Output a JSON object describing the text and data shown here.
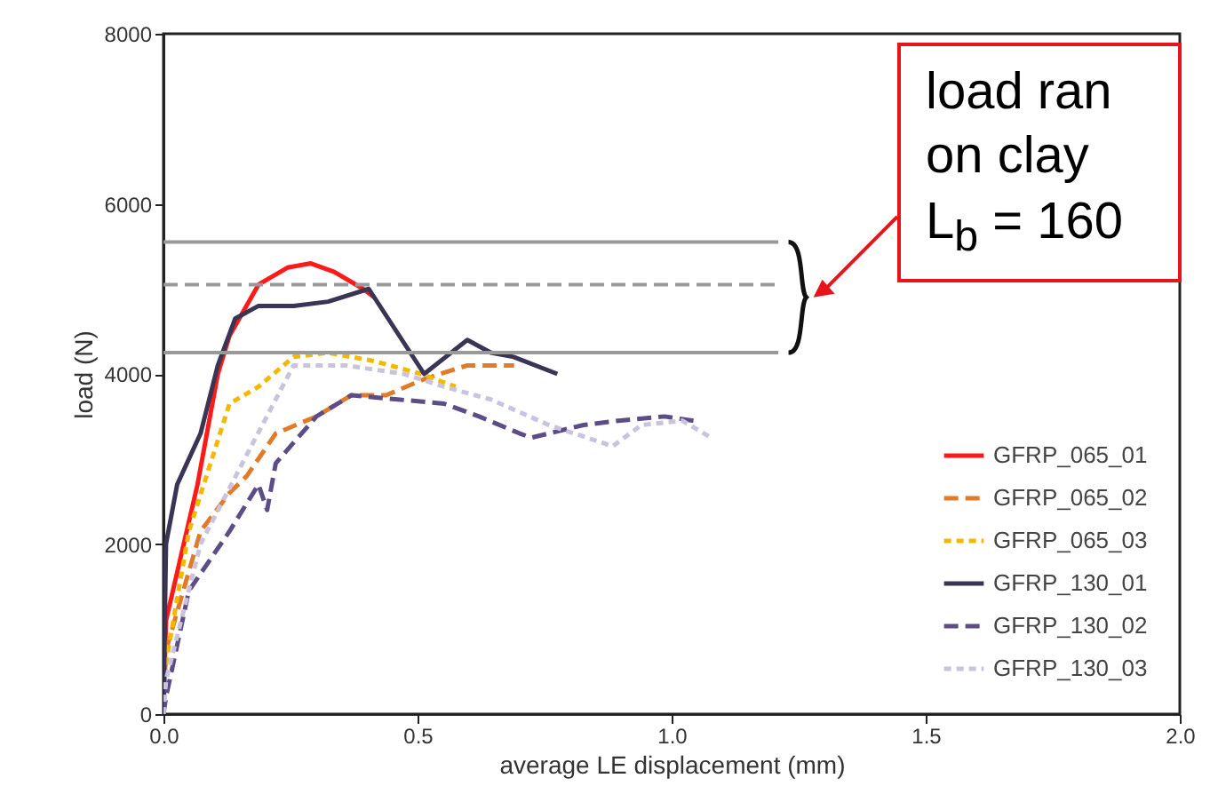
{
  "chart_data": {
    "type": "line",
    "xlabel": "average LE displacement (mm)",
    "ylabel": "load (N)",
    "xlim": [
      0,
      2
    ],
    "xticks": [
      {
        "value": 0,
        "label": "0.0"
      },
      {
        "value": 0.5,
        "label": "0.5"
      },
      {
        "value": 1,
        "label": "1.0"
      },
      {
        "value": 1.5,
        "label": "1.5"
      },
      {
        "value": 2,
        "label": "2.0"
      }
    ],
    "ylim": [
      0,
      8000
    ],
    "yticks": [
      0,
      2000,
      4000,
      6000,
      8000
    ],
    "grid": false,
    "legend": "bottom right",
    "annotations": [
      "load ran\non clay\nL$_{b}$ = 160"
    ],
    "ref_lines": [
      {
        "axis": "y",
        "value": 5550,
        "color": "#999999",
        "line_style": "solid"
      },
      {
        "axis": "y",
        "value": 5050,
        "color": "#999999",
        "line_style": "dashed"
      },
      {
        "axis": "y",
        "value": 4250,
        "color": "#999999",
        "line_style": "solid"
      }
    ],
    "series": [
      {
        "name": "GFRP_065_01",
        "color": "#ff1a1a",
        "line_style": "solid",
        "x": [
          0,
          0.005,
          0.067,
          0.107,
          0.13,
          0.187,
          0.244,
          0.29,
          0.336,
          0.393,
          0.415
        ],
        "values": [
          0,
          1100,
          2700,
          4000,
          4450,
          5050,
          5250,
          5300,
          5200,
          5000,
          4900
        ]
      },
      {
        "name": "GFRP_065_02",
        "color": "#e07b2a",
        "line_style": "dashed",
        "x": [
          0,
          0.005,
          0.073,
          0.13,
          0.164,
          0.221,
          0.301,
          0.37,
          0.438,
          0.518,
          0.598,
          0.678,
          0.69
        ],
        "values": [
          0,
          750,
          2150,
          2600,
          2800,
          3300,
          3500,
          3750,
          3750,
          3950,
          4100,
          4100,
          4100
        ]
      },
      {
        "name": "GFRP_065_03",
        "color": "#f5b800",
        "line_style": "dotted",
        "x": [
          0,
          0.005,
          0.05,
          0.13,
          0.187,
          0.256,
          0.324,
          0.415,
          0.507,
          0.575
        ],
        "values": [
          0,
          600,
          2150,
          3650,
          3850,
          4200,
          4250,
          4150,
          4000,
          3850
        ]
      },
      {
        "name": "GFRP_130_01",
        "color": "#3b3454",
        "line_style": "solid",
        "x": [
          0,
          0.005,
          0.027,
          0.073,
          0.107,
          0.141,
          0.187,
          0.256,
          0.324,
          0.404,
          0.513,
          0.598,
          0.644,
          0.689,
          0.775
        ],
        "values": [
          0,
          2000,
          2700,
          3300,
          4100,
          4650,
          4800,
          4800,
          4850,
          5000,
          4000,
          4400,
          4250,
          4200,
          4000
        ]
      },
      {
        "name": "GFRP_130_02",
        "color": "#5c4d86",
        "line_style": "dashed",
        "x": [
          0,
          0.005,
          0.05,
          0.13,
          0.187,
          0.204,
          0.221,
          0.301,
          0.37,
          0.461,
          0.552,
          0.621,
          0.701,
          0.724,
          0.758,
          0.827,
          0.895,
          0.986,
          1.043
        ],
        "values": [
          0,
          200,
          1450,
          2150,
          2700,
          2400,
          2950,
          3500,
          3750,
          3700,
          3650,
          3500,
          3300,
          3250,
          3300,
          3400,
          3450,
          3500,
          3450
        ]
      },
      {
        "name": "GFRP_130_03",
        "color": "#c9c3de",
        "line_style": "dotted",
        "x": [
          0,
          0.005,
          0.073,
          0.164,
          0.256,
          0.359,
          0.473,
          0.552,
          0.644,
          0.758,
          0.884,
          0.941,
          1.021,
          1.078
        ],
        "values": [
          0,
          400,
          2000,
          3050,
          4100,
          4100,
          4000,
          3850,
          3700,
          3400,
          3150,
          3400,
          3450,
          3250
        ]
      }
    ]
  }
}
